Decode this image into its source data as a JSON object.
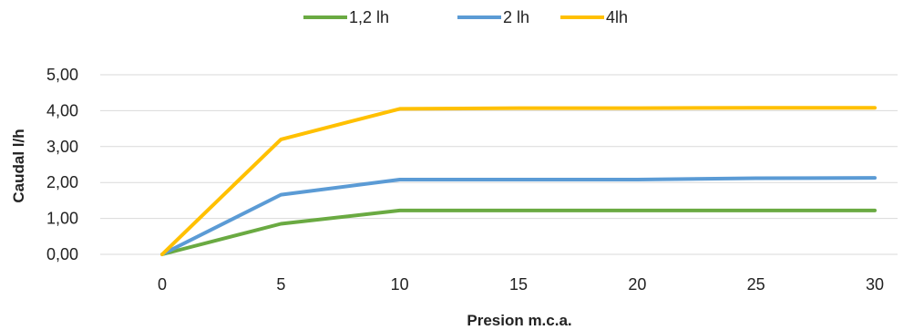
{
  "chart_data": {
    "type": "line",
    "x": [
      0,
      5,
      10,
      15,
      20,
      25,
      30
    ],
    "x_tick_labels": [
      "0",
      "5",
      "10",
      "15",
      "20",
      "25",
      "30"
    ],
    "y_tick_labels": [
      "0,00",
      "1,00",
      "2,00",
      "3,00",
      "4,00",
      "5,00"
    ],
    "ylim": [
      0,
      5
    ],
    "xlim": [
      0,
      30
    ],
    "xlabel": "Presion m.c.a.",
    "ylabel": "Caudal l/h",
    "grid": true,
    "legend_position": "top",
    "series": [
      {
        "name": "1,2 lh",
        "color": "#6aaa42",
        "values": [
          0,
          0.85,
          1.22,
          1.22,
          1.22,
          1.22,
          1.22
        ]
      },
      {
        "name": "2 lh",
        "color": "#5b9bd5",
        "values": [
          0,
          1.66,
          2.08,
          2.08,
          2.08,
          2.12,
          2.13
        ]
      },
      {
        "name": "4lh",
        "color": "#ffc000",
        "values": [
          0,
          3.2,
          4.05,
          4.07,
          4.07,
          4.08,
          4.08
        ]
      }
    ]
  }
}
